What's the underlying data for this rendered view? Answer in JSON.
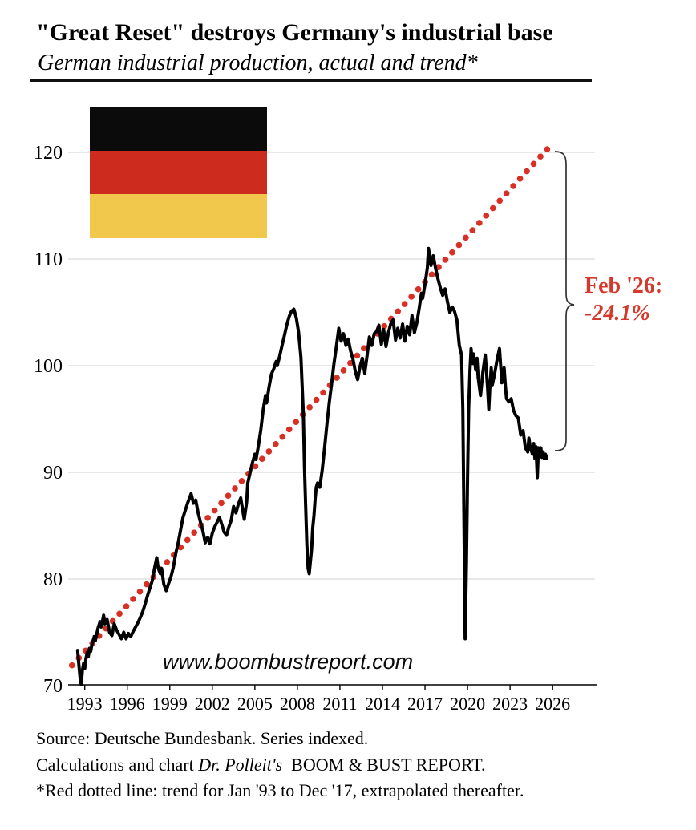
{
  "header": {
    "title": "\"Great Reset\" destroys Germany's industrial base",
    "subtitle": "German industrial production, actual and trend*"
  },
  "watermark": "www.boombustreport.com",
  "annotation": {
    "line1": "Feb '26:",
    "line2": "-24.1%",
    "color": "#D5392C"
  },
  "flag": {
    "label": "germany-flag",
    "colors": [
      "#0b0b0b",
      "#CE2B1F",
      "#F2C84C"
    ]
  },
  "footer": {
    "line1": "Source: Deutsche Bundesbank. Series indexed.",
    "line2_prefix": "Calculations and chart ",
    "line2_italic": "Dr. Polleit's",
    "line2_suffix": " BOOM & BUST REPORT.",
    "line3": "*Red dotted line: trend for Jan '93 to Dec '17, extrapolated thereafter."
  },
  "chart_data": {
    "type": "line",
    "title": "\"Great Reset\" destroys Germany's industrial base",
    "subtitle": "German industrial production, actual and trend*",
    "xlabel": "",
    "ylabel": "",
    "xlim": [
      1992.5,
      2027.0
    ],
    "ylim": [
      70,
      125
    ],
    "x_ticks": [
      1993,
      1996,
      1999,
      2002,
      2005,
      2008,
      2011,
      2014,
      2017,
      2020,
      2023,
      2026
    ],
    "y_ticks": [
      70,
      80,
      90,
      100,
      110,
      120
    ],
    "grid": "horizontal",
    "legend": "none",
    "annotation_text": "Feb '26: -24.1% (actual vs. trend)",
    "series": [
      {
        "name": "actual",
        "color": "#000000",
        "style": "solid",
        "points": [
          [
            1993.0,
            73.3
          ],
          [
            1993.08,
            72.0
          ],
          [
            1993.17,
            70.8
          ],
          [
            1993.25,
            70.1
          ],
          [
            1993.33,
            71.4
          ],
          [
            1993.42,
            72.1
          ],
          [
            1993.5,
            71.6
          ],
          [
            1993.58,
            72.5
          ],
          [
            1993.67,
            73.1
          ],
          [
            1993.75,
            72.7
          ],
          [
            1993.83,
            73.5
          ],
          [
            1993.92,
            73.2
          ],
          [
            1994.0,
            73.8
          ],
          [
            1994.17,
            74.6
          ],
          [
            1994.25,
            74.2
          ],
          [
            1994.42,
            75.3
          ],
          [
            1994.58,
            76.0
          ],
          [
            1994.67,
            75.5
          ],
          [
            1994.83,
            76.6
          ],
          [
            1994.92,
            75.8
          ],
          [
            1995.08,
            76.2
          ],
          [
            1995.25,
            75.0
          ],
          [
            1995.42,
            74.7
          ],
          [
            1995.58,
            75.8
          ],
          [
            1995.75,
            75.2
          ],
          [
            1995.92,
            74.8
          ],
          [
            1996.08,
            74.4
          ],
          [
            1996.25,
            75.0
          ],
          [
            1996.42,
            74.4
          ],
          [
            1996.58,
            74.9
          ],
          [
            1996.75,
            74.6
          ],
          [
            1996.92,
            75.1
          ],
          [
            1997.08,
            75.5
          ],
          [
            1997.25,
            75.9
          ],
          [
            1997.42,
            76.4
          ],
          [
            1997.58,
            76.9
          ],
          [
            1997.75,
            77.6
          ],
          [
            1997.92,
            78.4
          ],
          [
            1998.08,
            79.1
          ],
          [
            1998.25,
            79.8
          ],
          [
            1998.42,
            81.0
          ],
          [
            1998.58,
            82.0
          ],
          [
            1998.67,
            81.1
          ],
          [
            1998.83,
            80.5
          ],
          [
            1998.92,
            81.0
          ],
          [
            1999.08,
            79.5
          ],
          [
            1999.25,
            78.9
          ],
          [
            1999.42,
            79.6
          ],
          [
            1999.58,
            80.2
          ],
          [
            1999.75,
            81.1
          ],
          [
            1999.92,
            82.4
          ],
          [
            2000.08,
            83.3
          ],
          [
            2000.25,
            84.5
          ],
          [
            2000.42,
            85.7
          ],
          [
            2000.58,
            86.4
          ],
          [
            2000.75,
            87.1
          ],
          [
            2000.92,
            87.7
          ],
          [
            2001.0,
            88.0
          ],
          [
            2001.17,
            87.1
          ],
          [
            2001.33,
            87.4
          ],
          [
            2001.5,
            86.2
          ],
          [
            2001.67,
            85.3
          ],
          [
            2001.83,
            84.5
          ],
          [
            2002.0,
            83.4
          ],
          [
            2002.17,
            83.9
          ],
          [
            2002.33,
            83.3
          ],
          [
            2002.5,
            84.3
          ],
          [
            2002.67,
            84.9
          ],
          [
            2002.83,
            85.3
          ],
          [
            2003.0,
            85.8
          ],
          [
            2003.17,
            85.1
          ],
          [
            2003.33,
            84.4
          ],
          [
            2003.5,
            84.1
          ],
          [
            2003.67,
            84.9
          ],
          [
            2003.83,
            85.5
          ],
          [
            2004.0,
            86.8
          ],
          [
            2004.17,
            86.2
          ],
          [
            2004.33,
            87.0
          ],
          [
            2004.5,
            87.6
          ],
          [
            2004.67,
            86.2
          ],
          [
            2004.75,
            85.6
          ],
          [
            2004.92,
            87.2
          ],
          [
            2005.0,
            89.0
          ],
          [
            2005.17,
            90.0
          ],
          [
            2005.33,
            90.9
          ],
          [
            2005.5,
            91.7
          ],
          [
            2005.58,
            91.2
          ],
          [
            2005.75,
            92.5
          ],
          [
            2005.92,
            94.0
          ],
          [
            2006.08,
            95.8
          ],
          [
            2006.25,
            97.2
          ],
          [
            2006.33,
            96.5
          ],
          [
            2006.5,
            98.0
          ],
          [
            2006.67,
            99.2
          ],
          [
            2006.83,
            99.7
          ],
          [
            2007.0,
            100.4
          ],
          [
            2007.08,
            100.0
          ],
          [
            2007.25,
            100.9
          ],
          [
            2007.42,
            101.9
          ],
          [
            2007.58,
            102.8
          ],
          [
            2007.75,
            103.8
          ],
          [
            2007.92,
            104.6
          ],
          [
            2008.08,
            105.1
          ],
          [
            2008.25,
            105.3
          ],
          [
            2008.42,
            104.5
          ],
          [
            2008.58,
            103.2
          ],
          [
            2008.75,
            100.8
          ],
          [
            2008.92,
            95.5
          ],
          [
            2009.0,
            90.5
          ],
          [
            2009.08,
            86.8
          ],
          [
            2009.17,
            83.2
          ],
          [
            2009.25,
            81.0
          ],
          [
            2009.33,
            80.5
          ],
          [
            2009.5,
            82.8
          ],
          [
            2009.58,
            84.8
          ],
          [
            2009.67,
            86.0
          ],
          [
            2009.75,
            87.5
          ],
          [
            2009.83,
            88.6
          ],
          [
            2009.92,
            89.0
          ],
          [
            2010.08,
            88.6
          ],
          [
            2010.25,
            90.2
          ],
          [
            2010.42,
            92.3
          ],
          [
            2010.58,
            94.5
          ],
          [
            2010.75,
            96.6
          ],
          [
            2010.92,
            98.4
          ],
          [
            2011.08,
            100.2
          ],
          [
            2011.25,
            101.8
          ],
          [
            2011.42,
            103.5
          ],
          [
            2011.5,
            102.9
          ],
          [
            2011.58,
            102.3
          ],
          [
            2011.75,
            103.0
          ],
          [
            2011.92,
            101.9
          ],
          [
            2012.08,
            102.5
          ],
          [
            2012.25,
            101.4
          ],
          [
            2012.42,
            100.6
          ],
          [
            2012.58,
            99.5
          ],
          [
            2012.75,
            98.7
          ],
          [
            2012.92,
            99.9
          ],
          [
            2013.08,
            100.7
          ],
          [
            2013.25,
            99.3
          ],
          [
            2013.42,
            101.0
          ],
          [
            2013.58,
            102.7
          ],
          [
            2013.75,
            101.9
          ],
          [
            2013.92,
            103.0
          ],
          [
            2014.08,
            103.2
          ],
          [
            2014.25,
            103.8
          ],
          [
            2014.42,
            102.0
          ],
          [
            2014.58,
            103.4
          ],
          [
            2014.75,
            101.8
          ],
          [
            2014.92,
            103.1
          ],
          [
            2015.08,
            103.9
          ],
          [
            2015.25,
            104.3
          ],
          [
            2015.42,
            102.4
          ],
          [
            2015.58,
            103.5
          ],
          [
            2015.75,
            102.6
          ],
          [
            2015.92,
            103.9
          ],
          [
            2016.08,
            102.3
          ],
          [
            2016.25,
            103.7
          ],
          [
            2016.42,
            102.9
          ],
          [
            2016.58,
            104.7
          ],
          [
            2016.75,
            103.1
          ],
          [
            2016.92,
            104.0
          ],
          [
            2017.08,
            105.3
          ],
          [
            2017.25,
            106.8
          ],
          [
            2017.33,
            106.3
          ],
          [
            2017.5,
            107.6
          ],
          [
            2017.67,
            109.2
          ],
          [
            2017.75,
            111.0
          ],
          [
            2017.92,
            109.4
          ],
          [
            2018.08,
            110.3
          ],
          [
            2018.25,
            109.1
          ],
          [
            2018.42,
            108.1
          ],
          [
            2018.58,
            107.3
          ],
          [
            2018.75,
            106.6
          ],
          [
            2018.92,
            107.2
          ],
          [
            2019.08,
            106.0
          ],
          [
            2019.25,
            105.0
          ],
          [
            2019.42,
            105.5
          ],
          [
            2019.58,
            105.1
          ],
          [
            2019.75,
            104.3
          ],
          [
            2019.92,
            101.9
          ],
          [
            2020.08,
            101.0
          ],
          [
            2020.17,
            96.0
          ],
          [
            2020.25,
            85.0
          ],
          [
            2020.33,
            74.4
          ],
          [
            2020.42,
            81.5
          ],
          [
            2020.5,
            89.5
          ],
          [
            2020.58,
            96.0
          ],
          [
            2020.67,
            99.5
          ],
          [
            2020.75,
            101.6
          ],
          [
            2020.83,
            100.2
          ],
          [
            2020.92,
            101.1
          ],
          [
            2021.08,
            99.6
          ],
          [
            2021.17,
            100.7
          ],
          [
            2021.25,
            98.9
          ],
          [
            2021.42,
            97.2
          ],
          [
            2021.58,
            99.4
          ],
          [
            2021.75,
            101.0
          ],
          [
            2021.92,
            97.8
          ],
          [
            2022.0,
            95.9
          ],
          [
            2022.08,
            98.1
          ],
          [
            2022.17,
            99.8
          ],
          [
            2022.25,
            98.2
          ],
          [
            2022.42,
            99.3
          ],
          [
            2022.58,
            100.5
          ],
          [
            2022.75,
            101.6
          ],
          [
            2022.92,
            98.4
          ],
          [
            2023.08,
            99.8
          ],
          [
            2023.17,
            98.1
          ],
          [
            2023.25,
            96.9
          ],
          [
            2023.42,
            96.6
          ],
          [
            2023.58,
            96.9
          ],
          [
            2023.75,
            95.8
          ],
          [
            2023.92,
            95.3
          ],
          [
            2024.08,
            95.1
          ],
          [
            2024.25,
            93.5
          ],
          [
            2024.42,
            93.9
          ],
          [
            2024.58,
            92.3
          ],
          [
            2024.75,
            91.9
          ],
          [
            2024.83,
            93.2
          ],
          [
            2024.92,
            92.4
          ],
          [
            2025.08,
            91.7
          ],
          [
            2025.17,
            92.7
          ],
          [
            2025.25,
            91.3
          ],
          [
            2025.33,
            92.4
          ],
          [
            2025.42,
            89.5
          ],
          [
            2025.5,
            92.3
          ],
          [
            2025.58,
            91.8
          ],
          [
            2025.67,
            92.3
          ],
          [
            2025.75,
            91.4
          ],
          [
            2025.83,
            91.9
          ],
          [
            2025.92,
            91.3
          ],
          [
            2026.0,
            91.7
          ],
          [
            2026.08,
            91.3
          ]
        ]
      },
      {
        "name": "trend (Jan '93 to Dec '17, extrapolated)",
        "color": "#D93025",
        "style": "dotted",
        "points": [
          [
            1992.6,
            71.9
          ],
          [
            2026.12,
            120.3
          ]
        ]
      }
    ]
  }
}
